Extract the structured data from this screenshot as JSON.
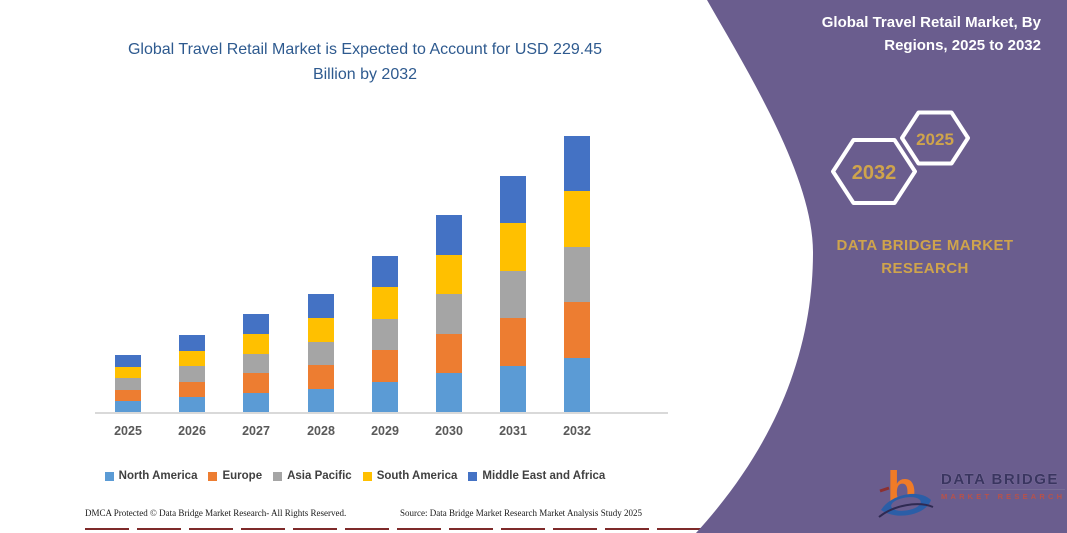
{
  "chart": {
    "title": "Global Travel Retail Market is Expected to Account for USD 229.45 Billion by 2032",
    "title_color": "#2e5a8f",
    "axis_line_color": "#d9d9d9",
    "x_label_color": "#595959",
    "legend_text_color": "#404040"
  },
  "chart_data": {
    "type": "bar",
    "stacked": true,
    "title": "Global Travel Retail Market is Expected to Account for USD 229.45 Billion by 2032",
    "unit": "USD Billion",
    "categories": [
      "2025",
      "2026",
      "2027",
      "2028",
      "2029",
      "2030",
      "2031",
      "2032"
    ],
    "series": [
      {
        "name": "North America",
        "color": "#5B9BD5",
        "values": [
          9.6,
          12.9,
          16.4,
          19.7,
          26.0,
          32.8,
          39.3,
          45.9
        ]
      },
      {
        "name": "Europe",
        "color": "#ED7D31",
        "values": [
          9.6,
          12.9,
          16.4,
          19.7,
          26.0,
          32.8,
          39.3,
          45.9
        ]
      },
      {
        "name": "Asia Pacific",
        "color": "#A5A5A5",
        "values": [
          9.6,
          12.9,
          16.4,
          19.7,
          26.0,
          32.8,
          39.3,
          45.9
        ]
      },
      {
        "name": "South America",
        "color": "#FFC000",
        "values": [
          9.6,
          12.9,
          16.4,
          19.7,
          26.0,
          32.8,
          39.3,
          45.9
        ]
      },
      {
        "name": "Middle East and Africa",
        "color": "#4472C4",
        "values": [
          9.6,
          12.9,
          16.4,
          19.7,
          26.0,
          32.8,
          39.3,
          45.9
        ]
      }
    ],
    "totals_estimated": [
      48.0,
      64.6,
      82.0,
      98.6,
      130.0,
      164.0,
      196.3,
      229.45
    ],
    "ylim": [
      0,
      240
    ],
    "grid": false,
    "legend_position": "bottom"
  },
  "footer": {
    "left": "DMCA Protected © Data Bridge Market Research-  All Rights Reserved.",
    "right": "Source: Data Bridge Market Research  Market Analysis Study 2025",
    "rule_color": "#7e2a2a"
  },
  "panel": {
    "bg_color": "#6a5d8e",
    "accent_gold": "#cfa44c",
    "title": "Global Travel Retail Market, By Regions, 2025 to 2032",
    "hexagons": [
      {
        "label": "2032"
      },
      {
        "label": "2025"
      }
    ],
    "brand_text": "DATA BRIDGE MARKET RESEARCH",
    "logo": {
      "line1": "DATA BRIDGE",
      "line2": "MARKET RESEARCH",
      "orange": "#f07b27",
      "blue": "#2b5ea7",
      "dark": "#3a3560"
    }
  }
}
